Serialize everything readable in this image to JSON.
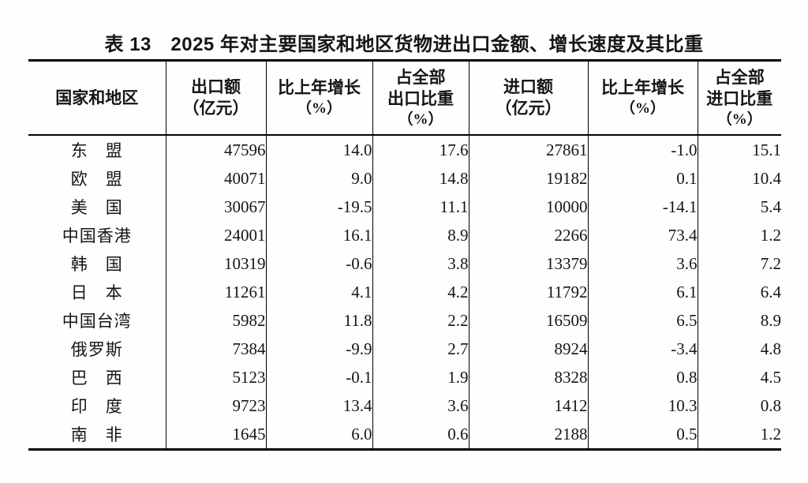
{
  "page": {
    "title": "表 13　2025 年对主要国家和地区货物进出口金额、增长速度及其比重"
  },
  "table": {
    "headers": [
      {
        "lines": [
          "国家和地区"
        ]
      },
      {
        "lines": [
          "出口额",
          "（亿元）"
        ]
      },
      {
        "lines": [
          "比上年增长",
          "（%）"
        ]
      },
      {
        "lines": [
          "占全部",
          "出口比重",
          "（%）"
        ]
      },
      {
        "lines": [
          "进口额",
          "（亿元）"
        ]
      },
      {
        "lines": [
          "比上年增长",
          "（%）"
        ]
      },
      {
        "lines": [
          "占全部",
          "进口比重",
          "（%）"
        ]
      }
    ],
    "rows": [
      [
        "东　盟",
        "47596",
        "14.0",
        "17.6",
        "27861",
        "-1.0",
        "15.1"
      ],
      [
        "欧　盟",
        "40071",
        "9.0",
        "14.8",
        "19182",
        "0.1",
        "10.4"
      ],
      [
        "美　国",
        "30067",
        "-19.5",
        "11.1",
        "10000",
        "-14.1",
        "5.4"
      ],
      [
        "中国香港",
        "24001",
        "16.1",
        "8.9",
        "2266",
        "73.4",
        "1.2"
      ],
      [
        "韩　国",
        "10319",
        "-0.6",
        "3.8",
        "13379",
        "3.6",
        "7.2"
      ],
      [
        "日　本",
        "11261",
        "4.1",
        "4.2",
        "11792",
        "6.1",
        "6.4"
      ],
      [
        "中国台湾",
        "5982",
        "11.8",
        "2.2",
        "16509",
        "6.5",
        "8.9"
      ],
      [
        "俄罗斯",
        "7384",
        "-9.9",
        "2.7",
        "8924",
        "-3.4",
        "4.8"
      ],
      [
        "巴　西",
        "5123",
        "-0.1",
        "1.9",
        "8328",
        "0.8",
        "4.5"
      ],
      [
        "印　度",
        "9723",
        "13.4",
        "3.6",
        "1412",
        "10.3",
        "0.8"
      ],
      [
        "南　非",
        "1645",
        "6.0",
        "0.6",
        "2188",
        "0.5",
        "1.2"
      ]
    ]
  }
}
